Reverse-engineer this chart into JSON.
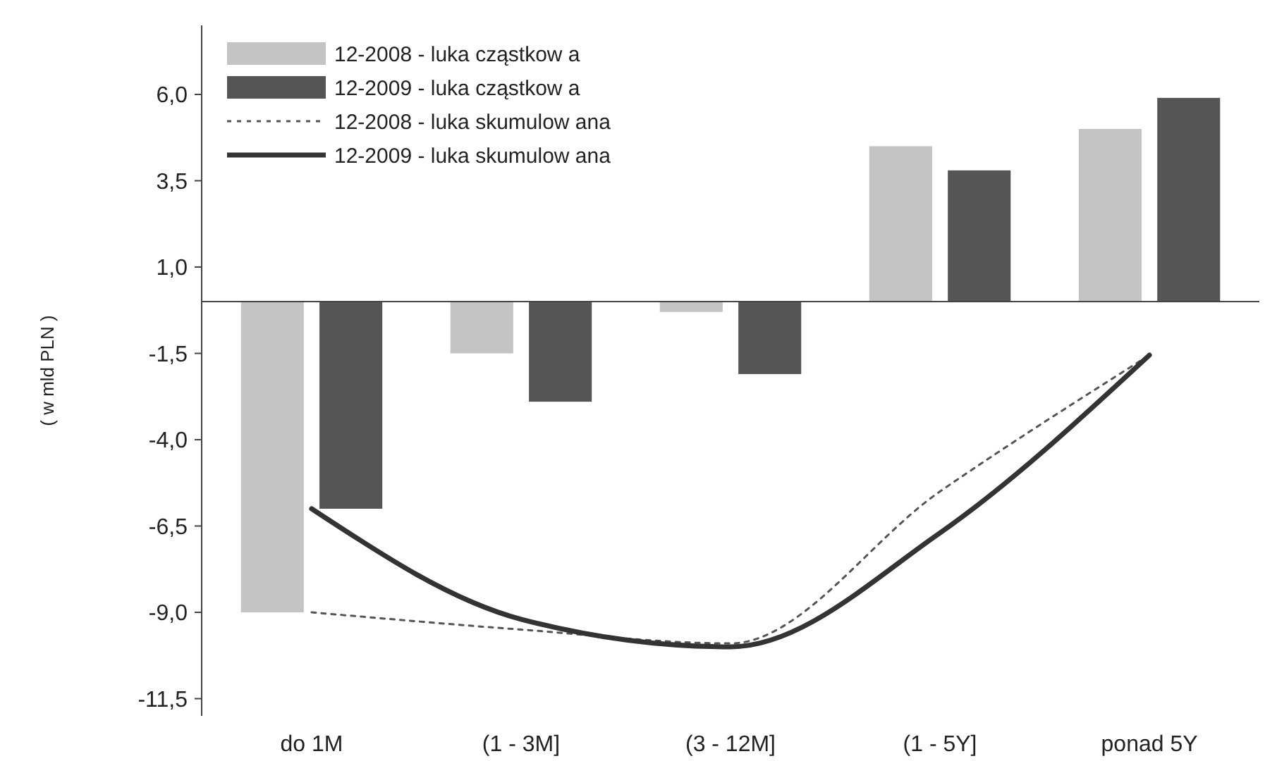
{
  "chart_data": {
    "type": "bar",
    "ylabel": "( w mld PLN )",
    "categories": [
      "do 1M",
      "(1 - 3M]",
      "(3 - 12M]",
      "(1 - 5Y]",
      "ponad 5Y"
    ],
    "series": [
      {
        "name": "12-2008 - luka cząstkow a",
        "color": "#c4c4c4",
        "values": [
          -9.0,
          -1.5,
          -0.3,
          4.5,
          5.0
        ]
      },
      {
        "name": "12-2009 - luka cząstkow a",
        "color": "#555555",
        "values": [
          -6.0,
          -2.9,
          -2.1,
          3.8,
          5.9
        ]
      },
      {
        "name": "12-2008 - luka skumulow ana",
        "type": "line",
        "line_style": "dotted",
        "color": "#555555",
        "values": [
          -9.0,
          -9.5,
          -9.9,
          -5.5,
          -1.55
        ]
      },
      {
        "name": "12-2009 - luka skumulow ana",
        "type": "line",
        "line_style": "solid",
        "color": "#333333",
        "values": [
          -6.0,
          -9.2,
          -10.0,
          -6.7,
          -1.55
        ]
      }
    ],
    "ylim": [
      -12,
      8
    ],
    "yticks": [
      {
        "value": 6,
        "label": "6,0"
      },
      {
        "value": 3.5,
        "label": "3,5"
      },
      {
        "value": 1,
        "label": "1,0"
      },
      {
        "value": -1.5,
        "label": "-1,5"
      },
      {
        "value": -4,
        "label": "-4,0"
      },
      {
        "value": -6.5,
        "label": "-6,5"
      },
      {
        "value": -9,
        "label": "-9,0"
      },
      {
        "value": -11.5,
        "label": "-11,5"
      }
    ],
    "legend": "top left",
    "grid": false
  }
}
